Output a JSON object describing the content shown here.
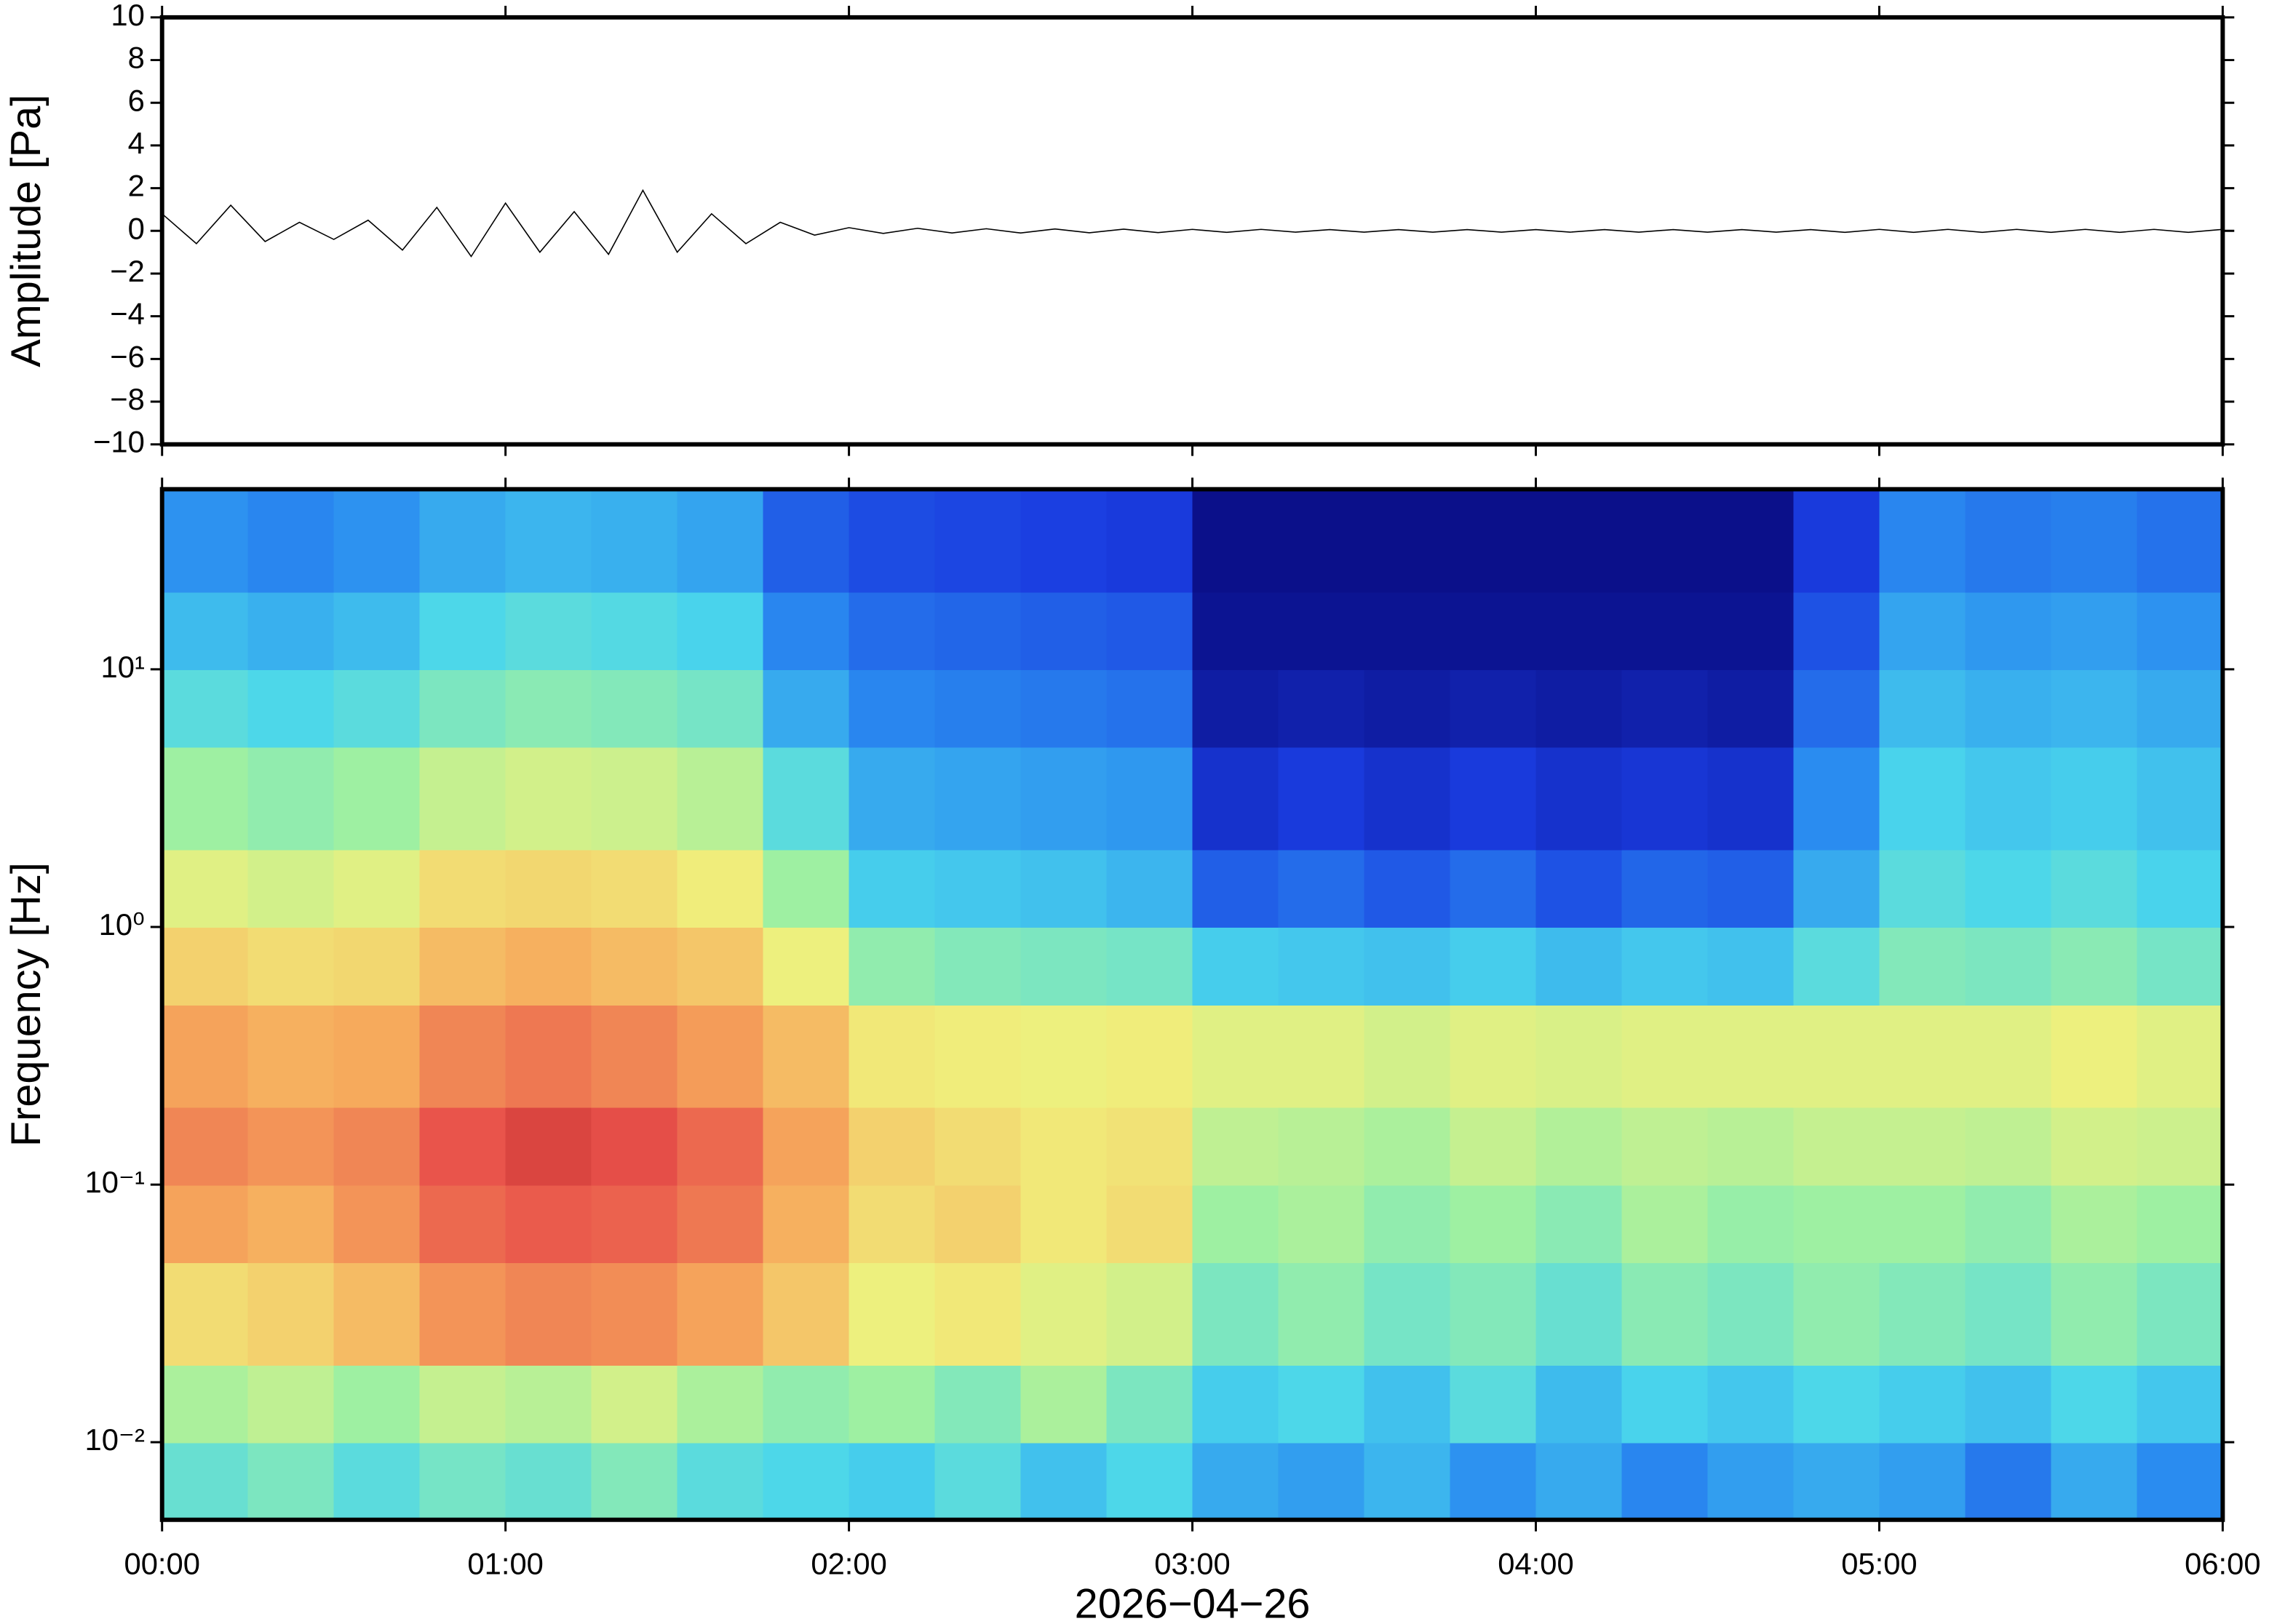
{
  "chart_data": [
    {
      "type": "line",
      "ylabel": "Amplitude [Pa]",
      "color": "#000000",
      "x": [
        0,
        0.1,
        0.2,
        0.3,
        0.4,
        0.5,
        0.6,
        0.7,
        0.8,
        0.9,
        1,
        1.1,
        1.2,
        1.3,
        1.4,
        1.5,
        1.6,
        1.7,
        1.8,
        1.9,
        2,
        2.1,
        2.2,
        2.3,
        2.4,
        2.5,
        2.6,
        2.7,
        2.8,
        2.9,
        3,
        3.1,
        3.2,
        3.3,
        3.4,
        3.5,
        3.6,
        3.7,
        3.8,
        3.9,
        4,
        4.1,
        4.2,
        4.3,
        4.4,
        4.5,
        4.6,
        4.7,
        4.8,
        4.9,
        5,
        5.1,
        5.2,
        5.3,
        5.4,
        5.5,
        5.6,
        5.7,
        5.8,
        5.9,
        6
      ],
      "values": [
        0.8,
        -0.6,
        1.2,
        -0.5,
        0.4,
        -0.4,
        0.5,
        -0.9,
        1.1,
        -1.2,
        1.3,
        -1,
        0.9,
        -1.1,
        1.9,
        -1,
        0.8,
        -0.6,
        0.4,
        -0.2,
        0.15,
        -0.12,
        0.12,
        -0.1,
        0.1,
        -0.1,
        0.09,
        -0.09,
        0.08,
        -0.08,
        0.07,
        -0.07,
        0.07,
        -0.06,
        0.06,
        -0.06,
        0.06,
        -0.06,
        0.06,
        -0.06,
        0.06,
        -0.06,
        0.06,
        -0.06,
        0.06,
        -0.06,
        0.06,
        -0.06,
        0.06,
        -0.07,
        0.07,
        -0.07,
        0.07,
        -0.07,
        0.07,
        -0.07,
        0.07,
        -0.07,
        0.07,
        -0.07,
        0.07
      ],
      "xlim": [
        0,
        6
      ],
      "ylim": [
        -10,
        10
      ],
      "yticks": [
        {
          "value": -10,
          "label": "−10"
        },
        {
          "value": -8,
          "label": "−8"
        },
        {
          "value": -6,
          "label": "−6"
        },
        {
          "value": -4,
          "label": "−4"
        },
        {
          "value": -2,
          "label": "−2"
        },
        0,
        2,
        4,
        6,
        8,
        10
      ]
    },
    {
      "type": "heatmap",
      "ylabel": "Frequency [Hz]",
      "xlabel": "2026−04−26",
      "log_y": true,
      "xlim": [
        0,
        6
      ],
      "ylim": [
        0.005,
        50
      ],
      "xticks": [
        {
          "value": 0,
          "label": "00:00"
        },
        {
          "value": 1,
          "label": "01:00"
        },
        {
          "value": 2,
          "label": "02:00"
        },
        {
          "value": 3,
          "label": "03:00"
        },
        {
          "value": 4,
          "label": "04:00"
        },
        {
          "value": 5,
          "label": "05:00"
        },
        {
          "value": 6,
          "label": "06:00"
        }
      ],
      "yticks": [
        {
          "value": 0.01,
          "label": "10⁻²"
        },
        {
          "value": 0.1,
          "label": "10⁻¹"
        },
        {
          "value": 1,
          "label": "10⁰"
        },
        {
          "value": 10,
          "label": "10¹"
        }
      ],
      "colormap": [
        "#08087a",
        "#1a3ce0",
        "#2a8cf0",
        "#4ad6ec",
        "#9ef0a2",
        "#f0f07c",
        "#f6aa5c",
        "#e8504a",
        "#a01818"
      ],
      "x_bins": [
        0,
        0.25,
        0.5,
        0.75,
        1,
        1.25,
        1.5,
        1.75,
        2,
        2.25,
        2.5,
        2.75,
        3,
        3.25,
        3.5,
        3.75,
        4,
        4.25,
        4.5,
        4.75,
        5,
        5.25,
        5.5,
        5.75,
        6
      ],
      "y_bins": [
        0.005,
        0.01,
        0.02,
        0.05,
        0.1,
        0.2,
        0.5,
        1,
        2,
        5,
        10,
        20,
        50
      ],
      "z": [
        [
          0.42,
          0.45,
          0.4,
          0.44,
          0.42,
          0.46,
          0.4,
          0.38,
          0.36,
          0.4,
          0.34,
          0.38,
          0.3,
          0.28,
          0.32,
          0.26,
          0.3,
          0.24,
          0.28,
          0.3,
          0.28,
          0.22,
          0.3,
          0.25
        ],
        [
          0.52,
          0.55,
          0.5,
          0.56,
          0.54,
          0.58,
          0.52,
          0.48,
          0.5,
          0.46,
          0.52,
          0.45,
          0.36,
          0.38,
          0.34,
          0.4,
          0.33,
          0.37,
          0.35,
          0.38,
          0.36,
          0.34,
          0.38,
          0.35
        ],
        [
          0.66,
          0.68,
          0.72,
          0.78,
          0.8,
          0.79,
          0.76,
          0.7,
          0.62,
          0.64,
          0.6,
          0.58,
          0.45,
          0.48,
          0.44,
          0.46,
          0.42,
          0.47,
          0.45,
          0.48,
          0.46,
          0.44,
          0.48,
          0.45
        ],
        [
          0.76,
          0.74,
          0.78,
          0.84,
          0.86,
          0.85,
          0.82,
          0.74,
          0.66,
          0.68,
          0.64,
          0.66,
          0.5,
          0.52,
          0.48,
          0.5,
          0.47,
          0.52,
          0.49,
          0.5,
          0.5,
          0.48,
          0.52,
          0.5
        ],
        [
          0.8,
          0.78,
          0.8,
          0.87,
          0.9,
          0.88,
          0.84,
          0.76,
          0.68,
          0.66,
          0.64,
          0.65,
          0.55,
          0.54,
          0.52,
          0.56,
          0.53,
          0.55,
          0.54,
          0.56,
          0.56,
          0.55,
          0.58,
          0.57
        ],
        [
          0.76,
          0.74,
          0.75,
          0.8,
          0.82,
          0.8,
          0.77,
          0.72,
          0.64,
          0.63,
          0.62,
          0.63,
          0.6,
          0.6,
          0.58,
          0.6,
          0.59,
          0.6,
          0.6,
          0.6,
          0.6,
          0.6,
          0.62,
          0.6
        ],
        [
          0.68,
          0.66,
          0.67,
          0.72,
          0.74,
          0.72,
          0.7,
          0.62,
          0.48,
          0.46,
          0.45,
          0.44,
          0.36,
          0.35,
          0.34,
          0.36,
          0.33,
          0.35,
          0.34,
          0.4,
          0.46,
          0.45,
          0.47,
          0.44
        ],
        [
          0.6,
          0.58,
          0.6,
          0.66,
          0.67,
          0.66,
          0.63,
          0.5,
          0.36,
          0.35,
          0.34,
          0.32,
          0.18,
          0.2,
          0.17,
          0.2,
          0.16,
          0.19,
          0.18,
          0.3,
          0.4,
          0.38,
          0.4,
          0.37
        ],
        [
          0.5,
          0.48,
          0.5,
          0.56,
          0.58,
          0.57,
          0.54,
          0.4,
          0.3,
          0.29,
          0.28,
          0.27,
          0.1,
          0.12,
          0.1,
          0.12,
          0.1,
          0.11,
          0.1,
          0.25,
          0.37,
          0.35,
          0.36,
          0.34
        ],
        [
          0.4,
          0.38,
          0.4,
          0.45,
          0.47,
          0.46,
          0.44,
          0.3,
          0.24,
          0.23,
          0.22,
          0.21,
          0.05,
          0.06,
          0.05,
          0.06,
          0.05,
          0.06,
          0.05,
          0.2,
          0.33,
          0.31,
          0.32,
          0.3
        ],
        [
          0.33,
          0.31,
          0.33,
          0.38,
          0.4,
          0.39,
          0.37,
          0.24,
          0.2,
          0.19,
          0.18,
          0.17,
          0.03,
          0.03,
          0.03,
          0.03,
          0.03,
          0.03,
          0.03,
          0.16,
          0.29,
          0.27,
          0.28,
          0.26
        ],
        [
          0.26,
          0.24,
          0.26,
          0.3,
          0.32,
          0.31,
          0.29,
          0.18,
          0.15,
          0.14,
          0.13,
          0.12,
          0.02,
          0.02,
          0.02,
          0.02,
          0.02,
          0.02,
          0.02,
          0.12,
          0.24,
          0.22,
          0.23,
          0.21
        ]
      ]
    }
  ]
}
